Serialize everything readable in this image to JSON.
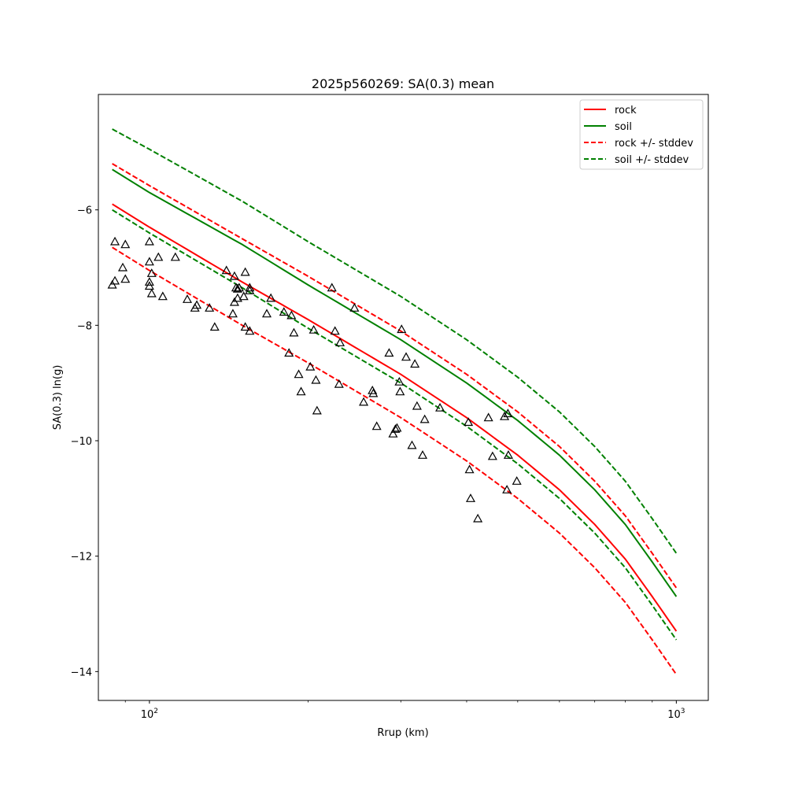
{
  "chart_data": {
    "type": "line",
    "title": "2025p560269: SA(0.3) mean",
    "xlabel": "Rrup (km)",
    "ylabel": "SA(0.3) ln(g)",
    "xscale": "log",
    "xlim": [
      80,
      1150
    ],
    "ylim": [
      -14.5,
      -4.0
    ],
    "x_ticks": [
      {
        "value": 100,
        "label": "10",
        "sup": "2"
      },
      {
        "value": 1000,
        "label": "10",
        "sup": "3"
      }
    ],
    "y_ticks": [
      -14,
      -12,
      -10,
      -8,
      -6
    ],
    "grid": false,
    "legend_position": "top-right",
    "series": [
      {
        "name": "rock",
        "color": "#ff0000",
        "style": "solid",
        "x": [
          85,
          100,
          150,
          200,
          300,
          400,
          500,
          600,
          700,
          800,
          900,
          1000
        ],
        "y": [
          -5.9,
          -6.3,
          -7.25,
          -7.9,
          -8.85,
          -9.6,
          -10.25,
          -10.85,
          -11.45,
          -12.05,
          -12.7,
          -13.3
        ]
      },
      {
        "name": "soil",
        "color": "#008000",
        "style": "solid",
        "x": [
          85,
          100,
          150,
          200,
          300,
          400,
          500,
          600,
          700,
          800,
          900,
          1000
        ],
        "y": [
          -5.3,
          -5.7,
          -6.6,
          -7.3,
          -8.25,
          -9.0,
          -9.65,
          -10.25,
          -10.85,
          -11.45,
          -12.1,
          -12.7
        ]
      },
      {
        "name": "rock +/- stddev",
        "color": "#ff0000",
        "style": "dashed",
        "x": [
          85,
          100,
          150,
          200,
          300,
          400,
          500,
          600,
          700,
          800,
          900,
          1000
        ],
        "y": [
          -5.2,
          -5.58,
          -6.5,
          -7.15,
          -8.1,
          -8.85,
          -9.5,
          -10.1,
          -10.7,
          -11.3,
          -11.95,
          -12.55
        ]
      },
      {
        "name": "",
        "color": "#ff0000",
        "style": "dashed",
        "x": [
          85,
          100,
          150,
          200,
          300,
          400,
          500,
          600,
          700,
          800,
          900,
          1000
        ],
        "y": [
          -6.65,
          -7.05,
          -8.0,
          -8.65,
          -9.6,
          -10.35,
          -11.0,
          -11.6,
          -12.2,
          -12.8,
          -13.45,
          -14.05
        ]
      },
      {
        "name": "soil +/- stddev",
        "color": "#008000",
        "style": "dashed",
        "x": [
          85,
          100,
          150,
          200,
          300,
          400,
          500,
          600,
          700,
          800,
          900,
          1000
        ],
        "y": [
          -4.6,
          -4.95,
          -5.85,
          -6.55,
          -7.5,
          -8.25,
          -8.9,
          -9.5,
          -10.1,
          -10.7,
          -11.35,
          -11.95
        ]
      },
      {
        "name": "",
        "color": "#008000",
        "style": "dashed",
        "x": [
          85,
          100,
          150,
          200,
          300,
          400,
          500,
          600,
          700,
          800,
          900,
          1000
        ],
        "y": [
          -6.0,
          -6.4,
          -7.35,
          -8.05,
          -9.0,
          -9.75,
          -10.4,
          -11.0,
          -11.6,
          -12.2,
          -12.85,
          -13.45
        ]
      }
    ],
    "observations": [
      {
        "x": 85,
        "y": -7.3
      },
      {
        "x": 86,
        "y": -6.55
      },
      {
        "x": 86,
        "y": -7.23
      },
      {
        "x": 89,
        "y": -7.0
      },
      {
        "x": 90,
        "y": -6.6
      },
      {
        "x": 90,
        "y": -7.2
      },
      {
        "x": 100,
        "y": -6.55
      },
      {
        "x": 100,
        "y": -6.9
      },
      {
        "x": 100,
        "y": -7.25
      },
      {
        "x": 100,
        "y": -7.32
      },
      {
        "x": 101,
        "y": -7.1
      },
      {
        "x": 101,
        "y": -7.45
      },
      {
        "x": 104,
        "y": -6.82
      },
      {
        "x": 106,
        "y": -7.5
      },
      {
        "x": 112,
        "y": -6.82
      },
      {
        "x": 118,
        "y": -7.55
      },
      {
        "x": 122,
        "y": -7.7
      },
      {
        "x": 123,
        "y": -7.65
      },
      {
        "x": 130,
        "y": -7.7
      },
      {
        "x": 133,
        "y": -8.03
      },
      {
        "x": 140,
        "y": -7.05
      },
      {
        "x": 144,
        "y": -7.8
      },
      {
        "x": 145,
        "y": -7.6
      },
      {
        "x": 145,
        "y": -7.15
      },
      {
        "x": 146,
        "y": -7.35
      },
      {
        "x": 147,
        "y": -7.53
      },
      {
        "x": 147,
        "y": -7.37
      },
      {
        "x": 148,
        "y": -7.35
      },
      {
        "x": 151,
        "y": -7.5
      },
      {
        "x": 152,
        "y": -8.03
      },
      {
        "x": 152,
        "y": -7.08
      },
      {
        "x": 155,
        "y": -7.35
      },
      {
        "x": 155,
        "y": -7.4
      },
      {
        "x": 155,
        "y": -8.1
      },
      {
        "x": 167,
        "y": -7.8
      },
      {
        "x": 170,
        "y": -7.53
      },
      {
        "x": 180,
        "y": -7.77
      },
      {
        "x": 184,
        "y": -8.48
      },
      {
        "x": 186,
        "y": -7.83
      },
      {
        "x": 188,
        "y": -8.13
      },
      {
        "x": 192,
        "y": -8.85
      },
      {
        "x": 194,
        "y": -9.15
      },
      {
        "x": 202,
        "y": -8.72
      },
      {
        "x": 205,
        "y": -8.08
      },
      {
        "x": 207,
        "y": -8.95
      },
      {
        "x": 208,
        "y": -9.48
      },
      {
        "x": 222,
        "y": -7.35
      },
      {
        "x": 225,
        "y": -8.1
      },
      {
        "x": 229,
        "y": -9.02
      },
      {
        "x": 230,
        "y": -8.3
      },
      {
        "x": 245,
        "y": -7.7
      },
      {
        "x": 255,
        "y": -9.33
      },
      {
        "x": 265,
        "y": -9.13
      },
      {
        "x": 266,
        "y": -9.18
      },
      {
        "x": 270,
        "y": -9.75
      },
      {
        "x": 285,
        "y": -8.48
      },
      {
        "x": 290,
        "y": -9.88
      },
      {
        "x": 293,
        "y": -9.8
      },
      {
        "x": 295,
        "y": -9.78
      },
      {
        "x": 298,
        "y": -8.98
      },
      {
        "x": 299,
        "y": -9.15
      },
      {
        "x": 301,
        "y": -8.07
      },
      {
        "x": 307,
        "y": -8.55
      },
      {
        "x": 315,
        "y": -10.08
      },
      {
        "x": 319,
        "y": -8.67
      },
      {
        "x": 322,
        "y": -9.4
      },
      {
        "x": 330,
        "y": -10.25
      },
      {
        "x": 333,
        "y": -9.63
      },
      {
        "x": 356,
        "y": -9.43
      },
      {
        "x": 403,
        "y": -9.68
      },
      {
        "x": 405,
        "y": -10.5
      },
      {
        "x": 407,
        "y": -11.0
      },
      {
        "x": 420,
        "y": -11.35
      },
      {
        "x": 440,
        "y": -9.6
      },
      {
        "x": 448,
        "y": -10.27
      },
      {
        "x": 472,
        "y": -9.58
      },
      {
        "x": 477,
        "y": -10.85
      },
      {
        "x": 479,
        "y": -9.53
      },
      {
        "x": 480,
        "y": -10.25
      },
      {
        "x": 498,
        "y": -10.7
      }
    ]
  }
}
